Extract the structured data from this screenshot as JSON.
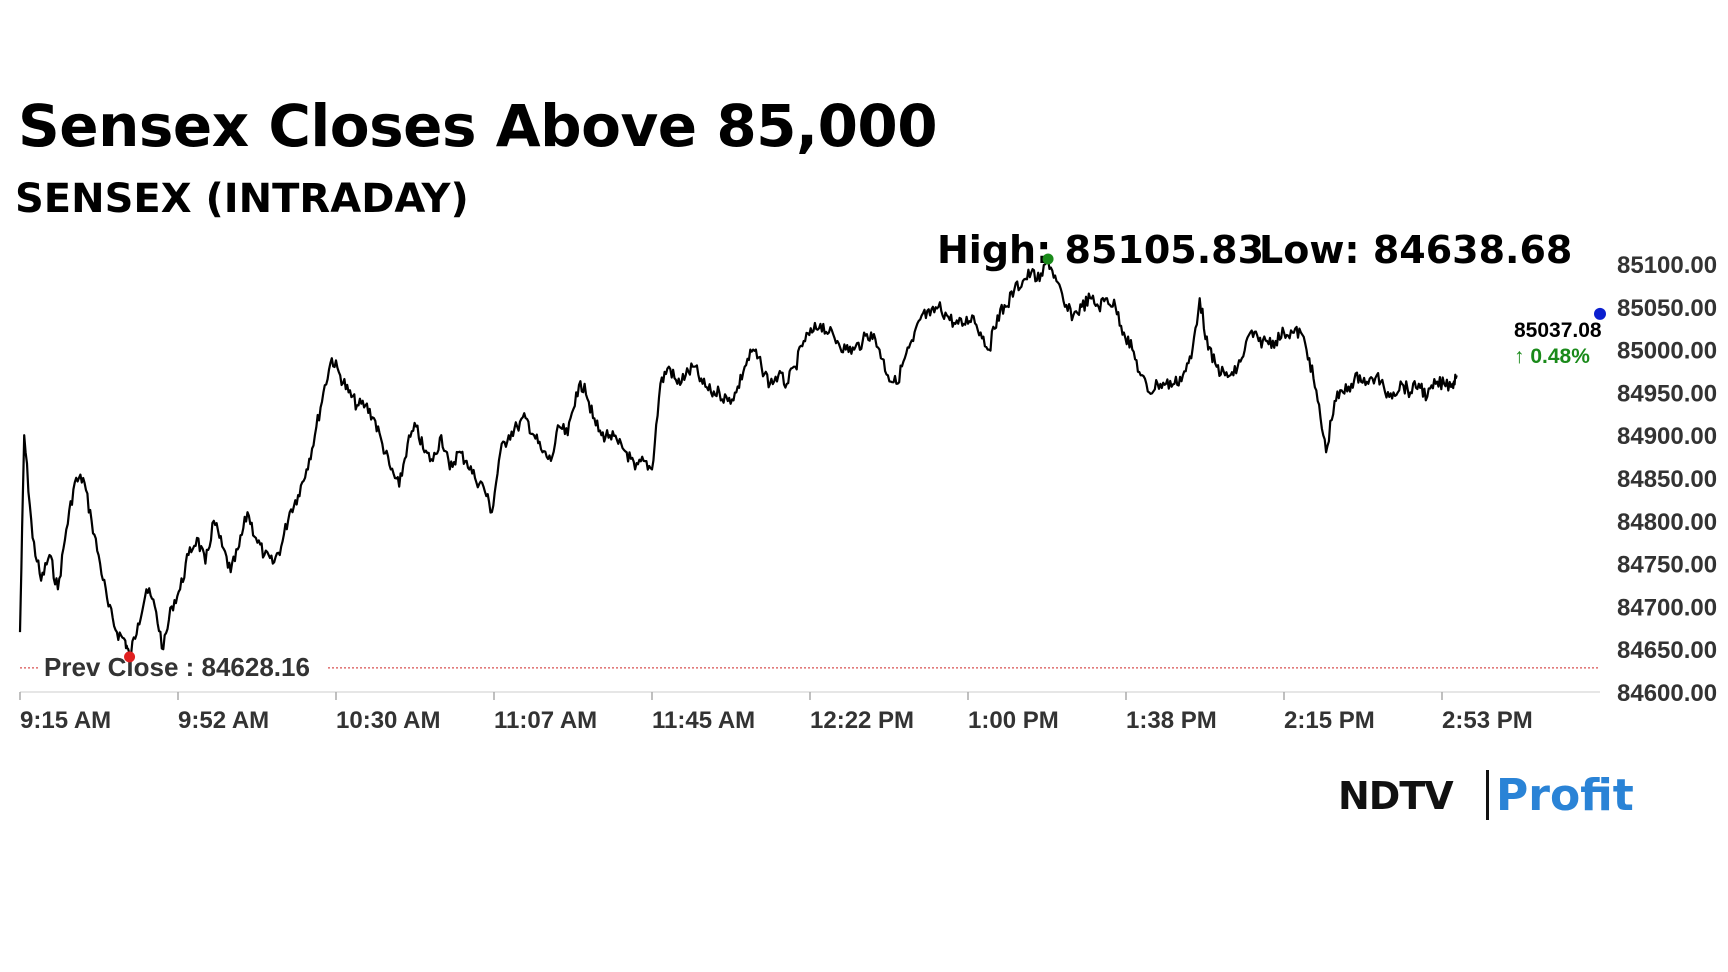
{
  "header": {
    "title": "Sensex Closes Above 85,000",
    "subtitle": "SENSEX (INTRADAY)",
    "high_text": "High: 85105.83",
    "low_text": "Low: 84638.68"
  },
  "logo": {
    "ndtv": "NDTV",
    "profit": "Profit"
  },
  "chart_data": {
    "type": "line",
    "title": "Sensex Closes Above 85,000",
    "subtitle": "SENSEX (INTRADAY)",
    "x_tick_labels": [
      "9:15 AM",
      "9:52 AM",
      "10:30 AM",
      "11:07 AM",
      "11:45 AM",
      "12:22 PM",
      "1:00 PM",
      "1:38 PM",
      "2:15 PM",
      "2:53 PM"
    ],
    "y_tick_labels": [
      "85100.00",
      "85050.00",
      "85000.00",
      "84950.00",
      "84900.00",
      "84850.00",
      "84800.00",
      "84750.00",
      "84700.00",
      "84650.00",
      "84600.00"
    ],
    "ylim": [
      84600,
      85100
    ],
    "series": [
      {
        "name": "SENSEX",
        "points": [
          [
            "9:15",
            84670
          ],
          [
            "9:16",
            84900
          ],
          [
            "9:18",
            84780
          ],
          [
            "9:20",
            84730
          ],
          [
            "9:22",
            84760
          ],
          [
            "9:24",
            84720
          ],
          [
            "9:26",
            84790
          ],
          [
            "9:28",
            84845
          ],
          [
            "9:30",
            84850
          ],
          [
            "9:32",
            84800
          ],
          [
            "9:34",
            84750
          ],
          [
            "9:36",
            84700
          ],
          [
            "9:38",
            84670
          ],
          [
            "9:40",
            84660
          ],
          [
            "9:41",
            84640
          ],
          [
            "9:43",
            84680
          ],
          [
            "9:45",
            84720
          ],
          [
            "9:47",
            84700
          ],
          [
            "9:49",
            84650
          ],
          [
            "9:51",
            84700
          ],
          [
            "9:53",
            84720
          ],
          [
            "9:55",
            84760
          ],
          [
            "9:57",
            84780
          ],
          [
            "9:59",
            84750
          ],
          [
            "10:01",
            84800
          ],
          [
            "10:03",
            84770
          ],
          [
            "10:05",
            84740
          ],
          [
            "10:07",
            84770
          ],
          [
            "10:09",
            84810
          ],
          [
            "10:11",
            84780
          ],
          [
            "10:13",
            84760
          ],
          [
            "10:15",
            84750
          ],
          [
            "10:17",
            84770
          ],
          [
            "10:19",
            84810
          ],
          [
            "10:21",
            84830
          ],
          [
            "10:23",
            84860
          ],
          [
            "10:25",
            84900
          ],
          [
            "10:27",
            84950
          ],
          [
            "10:29",
            84990
          ],
          [
            "10:31",
            84970
          ],
          [
            "10:33",
            84950
          ],
          [
            "10:35",
            84935
          ],
          [
            "10:37",
            84935
          ],
          [
            "10:39",
            84920
          ],
          [
            "10:41",
            84890
          ],
          [
            "10:43",
            84860
          ],
          [
            "10:45",
            84840
          ],
          [
            "10:47",
            84890
          ],
          [
            "10:49",
            84910
          ],
          [
            "10:51",
            84880
          ],
          [
            "10:53",
            84870
          ],
          [
            "10:55",
            84900
          ],
          [
            "10:57",
            84860
          ],
          [
            "10:59",
            84880
          ],
          [
            "11:01",
            84870
          ],
          [
            "11:03",
            84850
          ],
          [
            "11:05",
            84840
          ],
          [
            "11:07",
            84810
          ],
          [
            "11:09",
            84880
          ],
          [
            "11:11",
            84900
          ],
          [
            "11:13",
            84910
          ],
          [
            "11:15",
            84920
          ],
          [
            "11:17",
            84900
          ],
          [
            "11:19",
            84880
          ],
          [
            "11:21",
            84870
          ],
          [
            "11:23",
            84910
          ],
          [
            "11:25",
            84900
          ],
          [
            "11:27",
            84950
          ],
          [
            "11:29",
            84960
          ],
          [
            "11:31",
            84920
          ],
          [
            "11:33",
            84900
          ],
          [
            "11:35",
            84900
          ],
          [
            "11:37",
            84890
          ],
          [
            "11:39",
            84880
          ],
          [
            "11:41",
            84860
          ],
          [
            "11:43",
            84870
          ],
          [
            "11:45",
            84860
          ],
          [
            "11:47",
            84960
          ],
          [
            "11:49",
            84980
          ],
          [
            "11:51",
            84960
          ],
          [
            "11:53",
            84970
          ],
          [
            "11:55",
            84980
          ],
          [
            "11:57",
            84960
          ],
          [
            "11:59",
            84950
          ],
          [
            "12:01",
            84950
          ],
          [
            "12:03",
            84940
          ],
          [
            "12:05",
            84950
          ],
          [
            "12:07",
            84980
          ],
          [
            "12:09",
            85000
          ],
          [
            "12:11",
            84980
          ],
          [
            "12:13",
            84960
          ],
          [
            "12:15",
            84970
          ],
          [
            "12:17",
            84960
          ],
          [
            "12:19",
            84980
          ],
          [
            "12:21",
            85010
          ],
          [
            "12:23",
            85020
          ],
          [
            "12:25",
            85030
          ],
          [
            "12:27",
            85020
          ],
          [
            "12:29",
            85010
          ],
          [
            "12:31",
            85000
          ],
          [
            "12:33",
            85000
          ],
          [
            "12:35",
            85010
          ],
          [
            "12:37",
            85020
          ],
          [
            "12:39",
            85000
          ],
          [
            "12:41",
            84970
          ],
          [
            "12:43",
            84960
          ],
          [
            "12:45",
            84990
          ],
          [
            "12:47",
            85010
          ],
          [
            "12:49",
            85040
          ],
          [
            "12:51",
            85040
          ],
          [
            "12:53",
            85050
          ],
          [
            "12:55",
            85040
          ],
          [
            "12:57",
            85030
          ],
          [
            "12:59",
            85030
          ],
          [
            "1:01",
            85040
          ],
          [
            "1:03",
            85020
          ],
          [
            "1:05",
            85000
          ],
          [
            "1:07",
            85040
          ],
          [
            "1:09",
            85050
          ],
          [
            "1:11",
            85070
          ],
          [
            "1:13",
            85080
          ],
          [
            "1:15",
            85090
          ],
          [
            "1:17",
            85080
          ],
          [
            "1:19",
            85105
          ],
          [
            "1:21",
            85080
          ],
          [
            "1:23",
            85050
          ],
          [
            "1:25",
            85040
          ],
          [
            "1:27",
            85050
          ],
          [
            "1:29",
            85060
          ],
          [
            "1:31",
            85050
          ],
          [
            "1:33",
            85060
          ],
          [
            "1:35",
            85050
          ],
          [
            "1:37",
            85020
          ],
          [
            "1:39",
            85000
          ],
          [
            "1:41",
            84970
          ],
          [
            "1:43",
            84950
          ],
          [
            "1:45",
            84960
          ],
          [
            "1:47",
            84960
          ],
          [
            "1:49",
            84960
          ],
          [
            "1:51",
            84970
          ],
          [
            "1:53",
            84990
          ],
          [
            "1:55",
            85060
          ],
          [
            "1:57",
            85000
          ],
          [
            "1:59",
            84980
          ],
          [
            "2:01",
            84970
          ],
          [
            "2:03",
            84970
          ],
          [
            "2:05",
            84990
          ],
          [
            "2:07",
            85020
          ],
          [
            "2:09",
            85010
          ],
          [
            "2:11",
            85010
          ],
          [
            "2:13",
            85010
          ],
          [
            "2:15",
            85020
          ],
          [
            "2:17",
            85020
          ],
          [
            "2:19",
            85020
          ],
          [
            "2:21",
            84990
          ],
          [
            "2:23",
            84940
          ],
          [
            "2:25",
            84880
          ],
          [
            "2:27",
            84940
          ],
          [
            "2:29",
            84950
          ],
          [
            "2:31",
            84960
          ],
          [
            "2:33",
            84970
          ],
          [
            "2:35",
            84960
          ],
          [
            "2:37",
            84970
          ],
          [
            "2:39",
            84950
          ],
          [
            "2:41",
            84950
          ],
          [
            "2:43",
            84960
          ],
          [
            "2:45",
            84950
          ],
          [
            "2:47",
            84960
          ],
          [
            "2:49",
            84945
          ],
          [
            "2:51",
            84960
          ],
          [
            "2:53",
            84960
          ],
          [
            "2:55",
            84960
          ],
          [
            "2:56",
            84970
          ]
        ]
      }
    ],
    "prev_close": {
      "label": "Prev Close : 84628.16",
      "value": 84628.16
    },
    "high": {
      "label": "High: 85105.83",
      "value": 85105.83,
      "time": "1:19",
      "color": "#1a8a1a"
    },
    "low": {
      "label": "Low: 84638.68",
      "value": 84638.68,
      "time": "9:41",
      "color": "#e02020"
    },
    "last": {
      "value_label": "85037.08",
      "value": 85037.08,
      "change_label": "↑ 0.48%",
      "color": "#1a8a1a",
      "marker_color": "#0b1fcf"
    },
    "colors": {
      "line": "#000000",
      "prev_close_line": "#d85050",
      "axis_text": "#333333"
    },
    "grid": false
  }
}
